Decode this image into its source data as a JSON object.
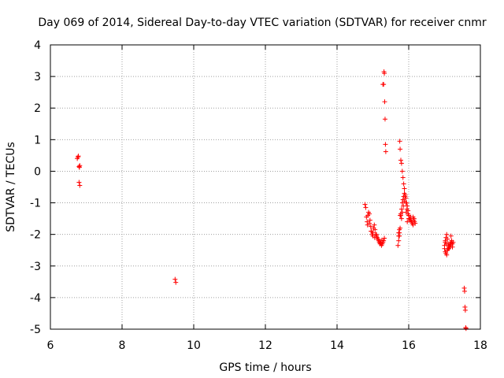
{
  "chart_data": {
    "type": "scatter",
    "title": "Day 069 of 2014, Sidereal Day-to-day VTEC variation (SDTVAR) for receiver cnmr",
    "xlabel": "GPS time / hours",
    "ylabel": "SDTVAR / TECUs",
    "xlim": [
      6,
      18
    ],
    "ylim": [
      -5,
      4
    ],
    "xticks": [
      6,
      8,
      10,
      12,
      14,
      16,
      18
    ],
    "yticks": [
      -5,
      -4,
      -3,
      -2,
      -1,
      0,
      1,
      2,
      3,
      4
    ],
    "grid": true,
    "marker": "+",
    "colors": {
      "series": "#ff0000",
      "grid": "#a0a0a0",
      "axis": "#000000"
    },
    "series": [
      {
        "name": "SDTVAR",
        "x": [
          6.75,
          6.77,
          6.78,
          6.8,
          6.81,
          6.82,
          6.8,
          6.82,
          9.48,
          9.5,
          14.78,
          14.8,
          14.82,
          14.84,
          14.86,
          14.88,
          14.9,
          14.92,
          14.94,
          14.96,
          14.98,
          15.0,
          15.02,
          15.04,
          15.06,
          15.08,
          15.1,
          15.12,
          15.14,
          15.16,
          15.18,
          15.2,
          15.22,
          15.24,
          15.26,
          15.28,
          15.3,
          15.32,
          14.85,
          14.9,
          14.95,
          15.0,
          15.05,
          15.1,
          15.15,
          15.2,
          15.25,
          15.28,
          15.3,
          15.31,
          15.32,
          15.33,
          15.34,
          15.35,
          15.36,
          15.7,
          15.72,
          15.74,
          15.75,
          15.76,
          15.78,
          15.8,
          15.82,
          15.84,
          15.86,
          15.88,
          15.9,
          15.92,
          15.94,
          15.96,
          15.98,
          16.0,
          16.02,
          16.04,
          16.06,
          16.08,
          16.1,
          16.12,
          16.14,
          16.16,
          16.18,
          15.72,
          15.74,
          15.76,
          15.78,
          15.8,
          15.82,
          15.84,
          15.86,
          15.88,
          15.9,
          15.92,
          15.95,
          15.98,
          16.0,
          15.72,
          15.74,
          15.76,
          15.78,
          15.8,
          15.82,
          15.85,
          15.88,
          15.9,
          15.93,
          15.96,
          16.0,
          16.03,
          16.06,
          16.09,
          16.12,
          16.15,
          17.0,
          17.02,
          17.04,
          17.06,
          17.08,
          17.1,
          17.12,
          17.14,
          17.16,
          17.18,
          17.2,
          17.22,
          17.24,
          17.0,
          17.02,
          17.04,
          17.06,
          17.08,
          17.1,
          17.12,
          17.14,
          17.16,
          17.18,
          17.2,
          17.02,
          17.05,
          17.08,
          17.12,
          17.15,
          17.18,
          17.22,
          17.55,
          17.56,
          17.57,
          17.58,
          17.59,
          17.6
        ],
        "y": [
          0.4,
          0.45,
          0.48,
          0.15,
          0.12,
          0.18,
          -0.35,
          -0.45,
          -3.42,
          -3.52,
          -1.05,
          -1.15,
          -1.45,
          -1.6,
          -1.4,
          -1.3,
          -1.35,
          -1.55,
          -1.75,
          -1.9,
          -2.0,
          -1.95,
          -1.8,
          -1.7,
          -1.85,
          -2.0,
          -2.05,
          -2.1,
          -2.15,
          -2.2,
          -2.25,
          -2.3,
          -2.28,
          -2.35,
          -2.3,
          -2.25,
          -2.2,
          -2.12,
          -1.7,
          -1.65,
          -1.9,
          -2.05,
          -2.1,
          -2.0,
          -2.15,
          -2.25,
          -2.18,
          2.75,
          2.75,
          3.15,
          3.1,
          2.2,
          1.65,
          0.85,
          0.62,
          -2.35,
          -2.2,
          -2.05,
          0.95,
          0.7,
          0.35,
          0.25,
          0.0,
          -0.2,
          -0.4,
          -0.55,
          -0.75,
          -0.85,
          -1.0,
          -1.1,
          -1.25,
          -1.4,
          -1.5,
          -1.55,
          -1.45,
          -1.6,
          -1.65,
          -1.7,
          -1.55,
          -1.6,
          -1.65,
          -1.95,
          -1.85,
          -1.4,
          -1.35,
          -1.2,
          -1.0,
          -0.9,
          -0.8,
          -0.7,
          -0.8,
          -1.0,
          -1.2,
          -1.35,
          -1.5,
          -2.05,
          -1.95,
          -1.8,
          -1.4,
          -1.5,
          -1.3,
          -1.1,
          -0.95,
          -0.75,
          -1.3,
          -1.6,
          -1.4,
          -1.5,
          -1.55,
          -1.6,
          -1.45,
          -1.5,
          -2.35,
          -2.25,
          -2.1,
          -2.0,
          -2.15,
          -2.3,
          -2.4,
          -2.35,
          -2.3,
          -2.25,
          -2.2,
          -2.3,
          -2.25,
          -2.45,
          -2.55,
          -2.6,
          -2.65,
          -2.5,
          -2.45,
          -2.35,
          -2.4,
          -2.3,
          -2.05,
          -2.25,
          -2.2,
          -2.3,
          -2.5,
          -2.45,
          -2.4,
          -2.35,
          -2.4,
          -3.7,
          -3.8,
          -4.3,
          -4.4,
          -4.95,
          -4.98
        ]
      }
    ]
  }
}
